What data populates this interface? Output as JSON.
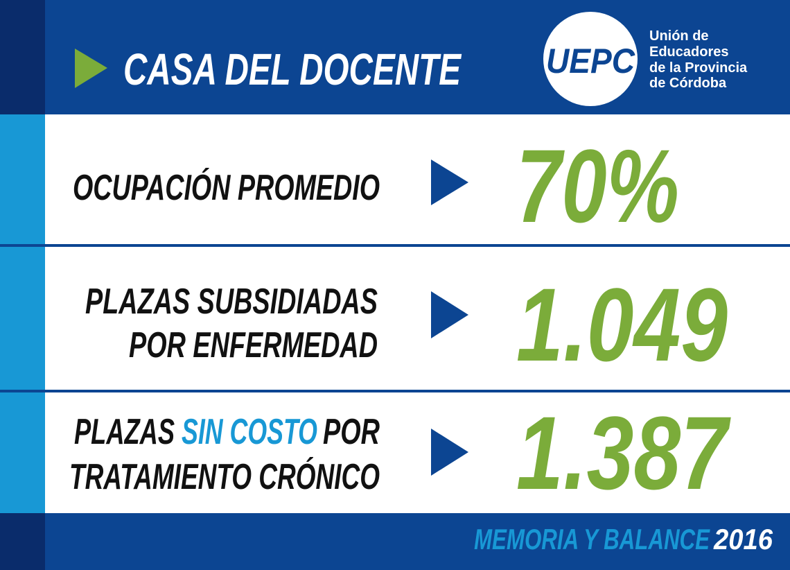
{
  "header": {
    "title": "CASA DEL DOCENTE",
    "logo": {
      "text": "UEPC",
      "tagline": [
        "Unión de",
        "Educadores",
        "de la Provincia",
        "de Córdoba"
      ]
    }
  },
  "stats": [
    {
      "label_lines": [
        [
          "OCUPACIÓN PROMEDIO"
        ]
      ],
      "value": "70%"
    },
    {
      "label_lines": [
        [
          "PLAZAS SUBSIDIADAS"
        ],
        [
          "POR ENFERMEDAD"
        ]
      ],
      "value": "1.049"
    },
    {
      "label_lines": [
        [
          "PLAZAS",
          "SIN COSTO",
          "POR"
        ],
        [
          "TRATAMIENTO CRÓNICO"
        ]
      ],
      "value": "1.387"
    }
  ],
  "footer": {
    "text": "MEMORIA Y BALANCE",
    "year": "2016"
  }
}
